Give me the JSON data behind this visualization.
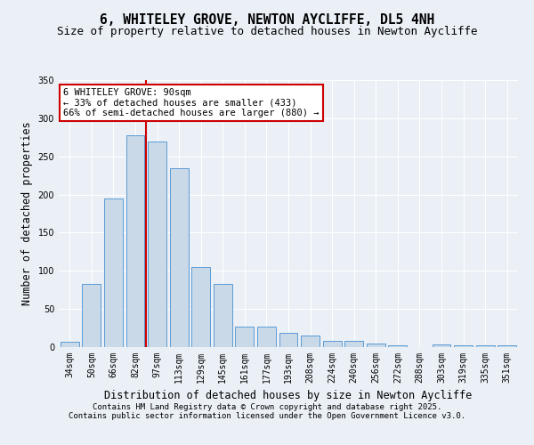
{
  "title_line1": "6, WHITELEY GROVE, NEWTON AYCLIFFE, DL5 4NH",
  "title_line2": "Size of property relative to detached houses in Newton Aycliffe",
  "xlabel": "Distribution of detached houses by size in Newton Aycliffe",
  "ylabel": "Number of detached properties",
  "categories": [
    "34sqm",
    "50sqm",
    "66sqm",
    "82sqm",
    "97sqm",
    "113sqm",
    "129sqm",
    "145sqm",
    "161sqm",
    "177sqm",
    "193sqm",
    "208sqm",
    "224sqm",
    "240sqm",
    "256sqm",
    "272sqm",
    "288sqm",
    "303sqm",
    "319sqm",
    "335sqm",
    "351sqm"
  ],
  "values": [
    7,
    83,
    195,
    278,
    270,
    235,
    105,
    83,
    27,
    27,
    19,
    15,
    8,
    8,
    5,
    2,
    0,
    4,
    2,
    2,
    2
  ],
  "bar_color": "#c9d9e8",
  "bar_edge_color": "#5b9bd5",
  "vline_color": "#cc0000",
  "vline_index": 3,
  "ylim": [
    0,
    350
  ],
  "yticks": [
    0,
    50,
    100,
    150,
    200,
    250,
    300,
    350
  ],
  "annotation_text": "6 WHITELEY GROVE: 90sqm\n← 33% of detached houses are smaller (433)\n66% of semi-detached houses are larger (880) →",
  "annotation_box_color": "#ffffff",
  "annotation_box_edge": "#cc0000",
  "footer_line1": "Contains HM Land Registry data © Crown copyright and database right 2025.",
  "footer_line2": "Contains public sector information licensed under the Open Government Licence v3.0.",
  "bg_color": "#eaf0f6",
  "plot_bg_color": "#eaf0f6",
  "grid_color": "#ffffff",
  "title_fontsize": 10.5,
  "subtitle_fontsize": 9,
  "axis_label_fontsize": 8.5,
  "tick_fontsize": 7,
  "annotation_fontsize": 7.5,
  "footer_fontsize": 6.5
}
